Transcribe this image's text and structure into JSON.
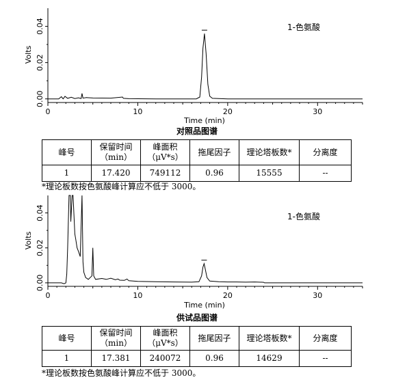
{
  "chart_data": [
    {
      "type": "line",
      "title": "对照品图谱",
      "annotation": "1-色氨酸",
      "xlabel": "Time (min)",
      "ylabel": "Volts",
      "xlim": [
        0,
        35
      ],
      "ylim": [
        -0.002,
        0.05
      ],
      "x_ticks": [
        0,
        10,
        20,
        30
      ],
      "y_ticks": [
        0.0,
        0.02,
        0.04
      ],
      "y_tick_labels": [
        "0.00",
        "0.02",
        "0.04"
      ],
      "x_tick_labels": [
        "0",
        "10",
        "20",
        "30"
      ],
      "peaks": [
        {
          "retention_time_min": 17.42,
          "height_volts": 0.036,
          "label": "1-色氨酸"
        }
      ],
      "series": [
        {
          "x": [
            0,
            1.2,
            1.5,
            1.7,
            1.9,
            2.2,
            2.6,
            3.0,
            3.4,
            3.7,
            3.8,
            3.9,
            4.3,
            5.0,
            7.0,
            8.3,
            8.4,
            9.0,
            12.0,
            15.0,
            16.5,
            16.9,
            17.1,
            17.25,
            17.42,
            17.6,
            17.8,
            18.0,
            18.3,
            20.0,
            25.0,
            30.0,
            35.0
          ],
          "y": [
            0.0,
            0.0,
            0.0012,
            0.0,
            0.0014,
            0.0003,
            0.0009,
            0.0002,
            0.0006,
            0.0002,
            0.003,
            0.0004,
            0.0007,
            0.0005,
            0.0004,
            0.001,
            0.0003,
            0.0001,
            0.0,
            0.0,
            0.0,
            0.001,
            0.012,
            0.028,
            0.036,
            0.025,
            0.008,
            0.0015,
            0.0003,
            0.0,
            0.0,
            0.0,
            0.0
          ]
        }
      ],
      "table": {
        "headers": [
          "峰号",
          "保留时间（min）",
          "峰面积（μV*s）",
          "拖尾因子",
          "理论塔板数*",
          "分离度"
        ],
        "rows": [
          [
            "1",
            "17.420",
            "749112",
            "0.96",
            "15555",
            "--"
          ]
        ]
      },
      "note": "*理论板数按色氨酸峰计算应不低于 3000。"
    },
    {
      "type": "line",
      "title": "供试品图谱",
      "annotation": "1-色氨酸",
      "xlabel": "Time (min)",
      "ylabel": "Volts",
      "xlim": [
        0,
        35
      ],
      "ylim": [
        -0.002,
        0.05
      ],
      "x_ticks": [
        0,
        10,
        20,
        30
      ],
      "y_ticks": [
        0.0,
        0.02,
        0.04
      ],
      "y_tick_labels": [
        "0.00",
        "0.02",
        "0.04"
      ],
      "x_tick_labels": [
        "0",
        "10",
        "20",
        "30"
      ],
      "peaks": [
        {
          "retention_time_min": 17.381,
          "height_volts": 0.011,
          "label": "1-色氨酸"
        }
      ],
      "series": [
        {
          "x": [
            0,
            1.5,
            1.8,
            2.0,
            2.1,
            2.2,
            2.35,
            2.5,
            2.55,
            2.7,
            2.8,
            3.0,
            3.1,
            3.25,
            3.4,
            3.6,
            3.8,
            3.9,
            4.0,
            4.2,
            4.5,
            4.9,
            5.0,
            5.1,
            5.3,
            6.0,
            6.5,
            7.0,
            7.5,
            7.8,
            8.0,
            8.5,
            8.8,
            9.0,
            10.0,
            12.0,
            14.0,
            16.0,
            16.8,
            17.1,
            17.25,
            17.381,
            17.5,
            17.7,
            18.0,
            19.0,
            20.0,
            21.0,
            22.0,
            23.0,
            24.0,
            24.1,
            25.0,
            30.0,
            35.0
          ],
          "y": [
            0.0,
            0.0,
            -0.0005,
            0.0,
            0.005,
            0.02,
            0.05,
            0.05,
            0.035,
            0.05,
            0.05,
            0.028,
            0.025,
            0.02,
            0.018,
            0.015,
            0.05,
            0.012,
            0.006,
            0.003,
            0.002,
            0.004,
            0.02,
            0.004,
            0.002,
            0.0025,
            0.002,
            0.0026,
            0.0018,
            0.0022,
            0.0015,
            0.0014,
            0.0022,
            0.0012,
            0.0008,
            0.0006,
            0.0005,
            0.0004,
            0.0006,
            0.004,
            0.009,
            0.011,
            0.008,
            0.003,
            0.001,
            0.0006,
            0.0005,
            0.0005,
            0.0004,
            0.0005,
            0.0003,
            0.0,
            0.0,
            0.0,
            0.0
          ]
        }
      ],
      "table": {
        "headers": [
          "峰号",
          "保留时间（min）",
          "峰面积（μV*s）",
          "拖尾因子",
          "理论塔板数*",
          "分离度"
        ],
        "rows": [
          [
            "1",
            "17.381",
            "240072",
            "0.96",
            "14629",
            "--"
          ]
        ]
      },
      "note": "*理论板数按色氨酸峰计算应不低于 3000。"
    }
  ]
}
